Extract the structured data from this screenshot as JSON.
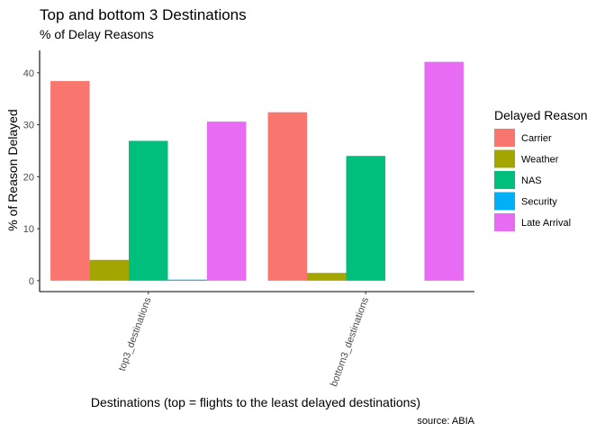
{
  "chart_data": {
    "type": "bar",
    "title": "Top and bottom 3 Destinations",
    "subtitle": "% of Delay Reasons",
    "xlabel": "Destinations (top = flights to the least delayed destinations)",
    "ylabel": "% of Reason Delayed",
    "caption": "source: ABIA",
    "categories": [
      "top3_destinations",
      "bottom3_destinations"
    ],
    "ylim": [
      -2.1,
      44.3
    ],
    "yticks": [
      0,
      10,
      20,
      30,
      40
    ],
    "grid": false,
    "legend": {
      "title": "Delayed Reason",
      "position": "right"
    },
    "series": [
      {
        "name": "Carrier",
        "color": "#F8766D",
        "values": [
          38.4,
          32.4
        ]
      },
      {
        "name": "Weather",
        "color": "#A3A500",
        "values": [
          4.0,
          1.5
        ]
      },
      {
        "name": "NAS",
        "color": "#00BF7D",
        "values": [
          26.9,
          24.0
        ]
      },
      {
        "name": "Security",
        "color": "#00B0F6",
        "values": [
          0.2,
          0.0
        ]
      },
      {
        "name": "Late Arrival",
        "color": "#E76BF3",
        "values": [
          30.6,
          42.1
        ]
      }
    ]
  }
}
